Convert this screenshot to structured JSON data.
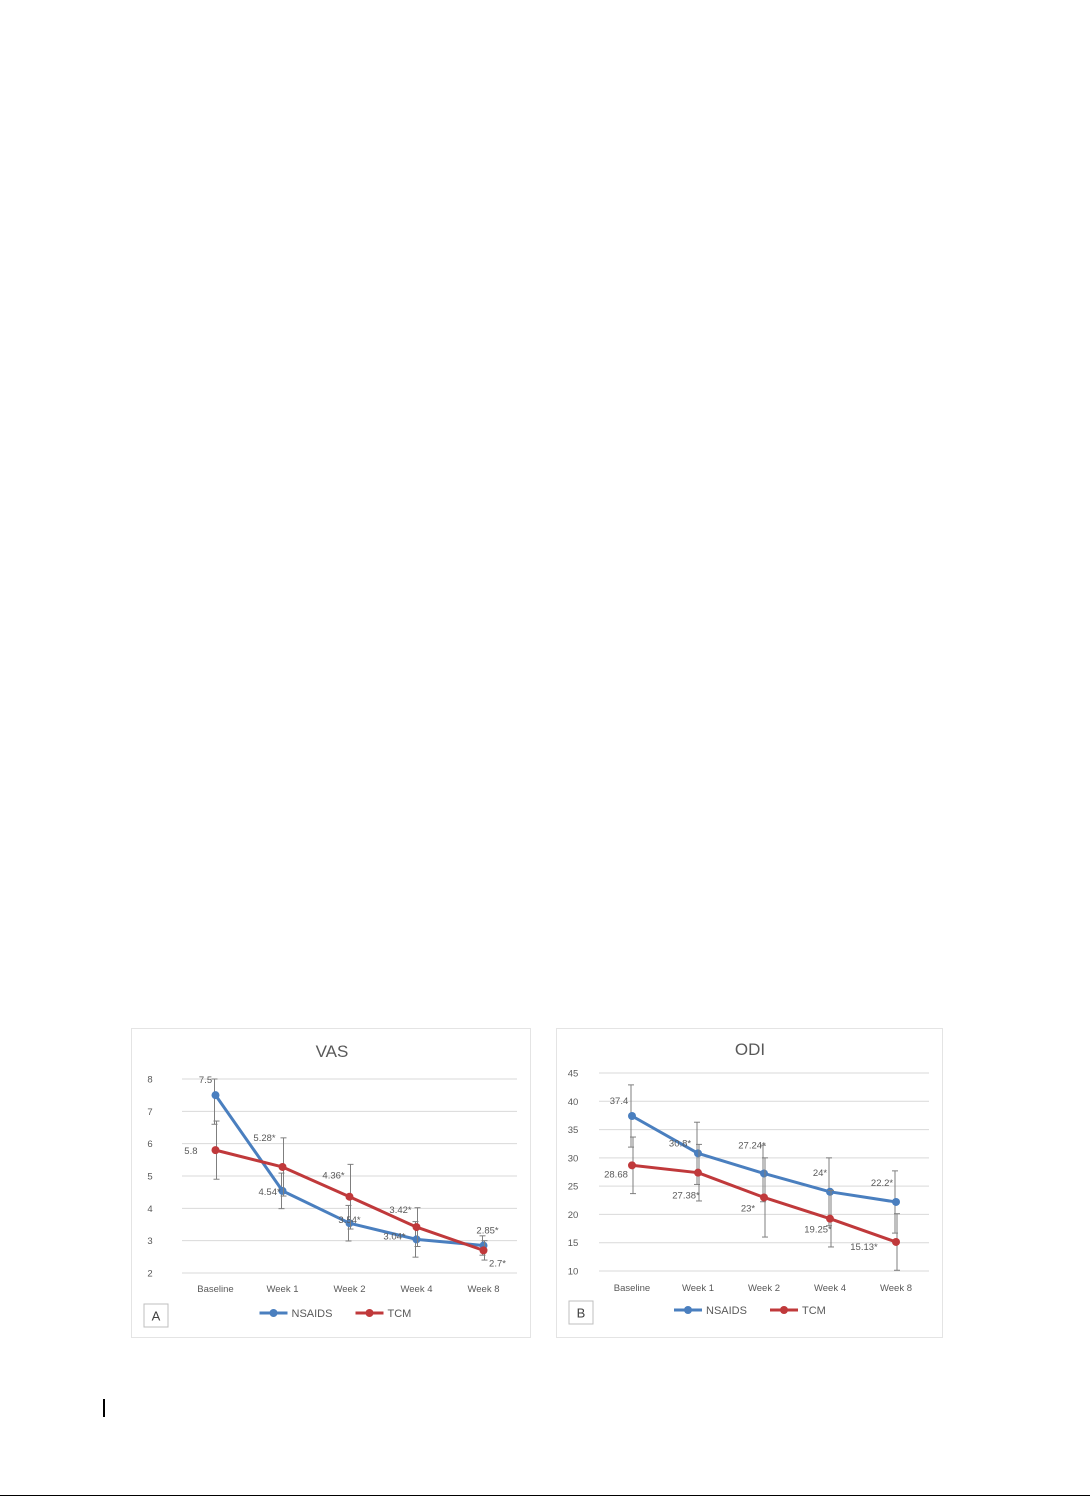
{
  "colors": {
    "nsaids": "#4a7fbf",
    "tcm": "#c0393b",
    "grid": "#d9d9d9",
    "text": "#595959",
    "error_bar": "#7f7f7f"
  },
  "chart_data": [
    {
      "type": "line",
      "title": "VAS",
      "panel_label": "A",
      "categories": [
        "Baseline",
        "Week 1",
        "Week 2",
        "Week 4",
        "Week 8"
      ],
      "ylim": [
        2,
        8
      ],
      "yticks": [
        "2",
        "3",
        "4",
        "5",
        "6",
        "7",
        "8"
      ],
      "grid": true,
      "legend_position": "bottom",
      "series": [
        {
          "name": "NSAIDS",
          "color_key": "nsaids",
          "values": [
            7.5,
            4.54,
            3.54,
            3.04,
            2.85
          ],
          "labels": [
            "7.5",
            "4.54*",
            "3.54*",
            "3.04*",
            "2.85*"
          ],
          "error": [
            0.9,
            0.55,
            0.55,
            0.55,
            0.3
          ]
        },
        {
          "name": "TCM",
          "color_key": "tcm",
          "values": [
            5.8,
            5.28,
            4.36,
            3.42,
            2.7
          ],
          "labels": [
            "5.8",
            "5.28*",
            "4.36*",
            "3.42*",
            "2.7*"
          ],
          "error": [
            0.9,
            0.9,
            1.0,
            0.6,
            0.3
          ]
        }
      ]
    },
    {
      "type": "line",
      "title": "ODI",
      "panel_label": "B",
      "categories": [
        "Baseline",
        "Week 1",
        "Week 2",
        "Week 4",
        "Week 8"
      ],
      "ylim": [
        10,
        45
      ],
      "yticks": [
        "10",
        "15",
        "20",
        "25",
        "30",
        "35",
        "40",
        "45"
      ],
      "grid": true,
      "legend_position": "bottom",
      "series": [
        {
          "name": "NSAIDS",
          "color_key": "nsaids",
          "values": [
            37.4,
            30.8,
            27.24,
            24,
            22.2
          ],
          "labels": [
            "37.4",
            "30.8*",
            "27.24*",
            "24*",
            "22.2*"
          ],
          "error": [
            5.5,
            5.5,
            5,
            6,
            5.5
          ]
        },
        {
          "name": "TCM",
          "color_key": "tcm",
          "values": [
            28.68,
            27.38,
            23,
            19.25,
            15.13
          ],
          "labels": [
            "28.68",
            "27.38*",
            "23*",
            "19.25*",
            "15.13*"
          ],
          "error": [
            5,
            5,
            7,
            5,
            5
          ]
        }
      ]
    }
  ]
}
